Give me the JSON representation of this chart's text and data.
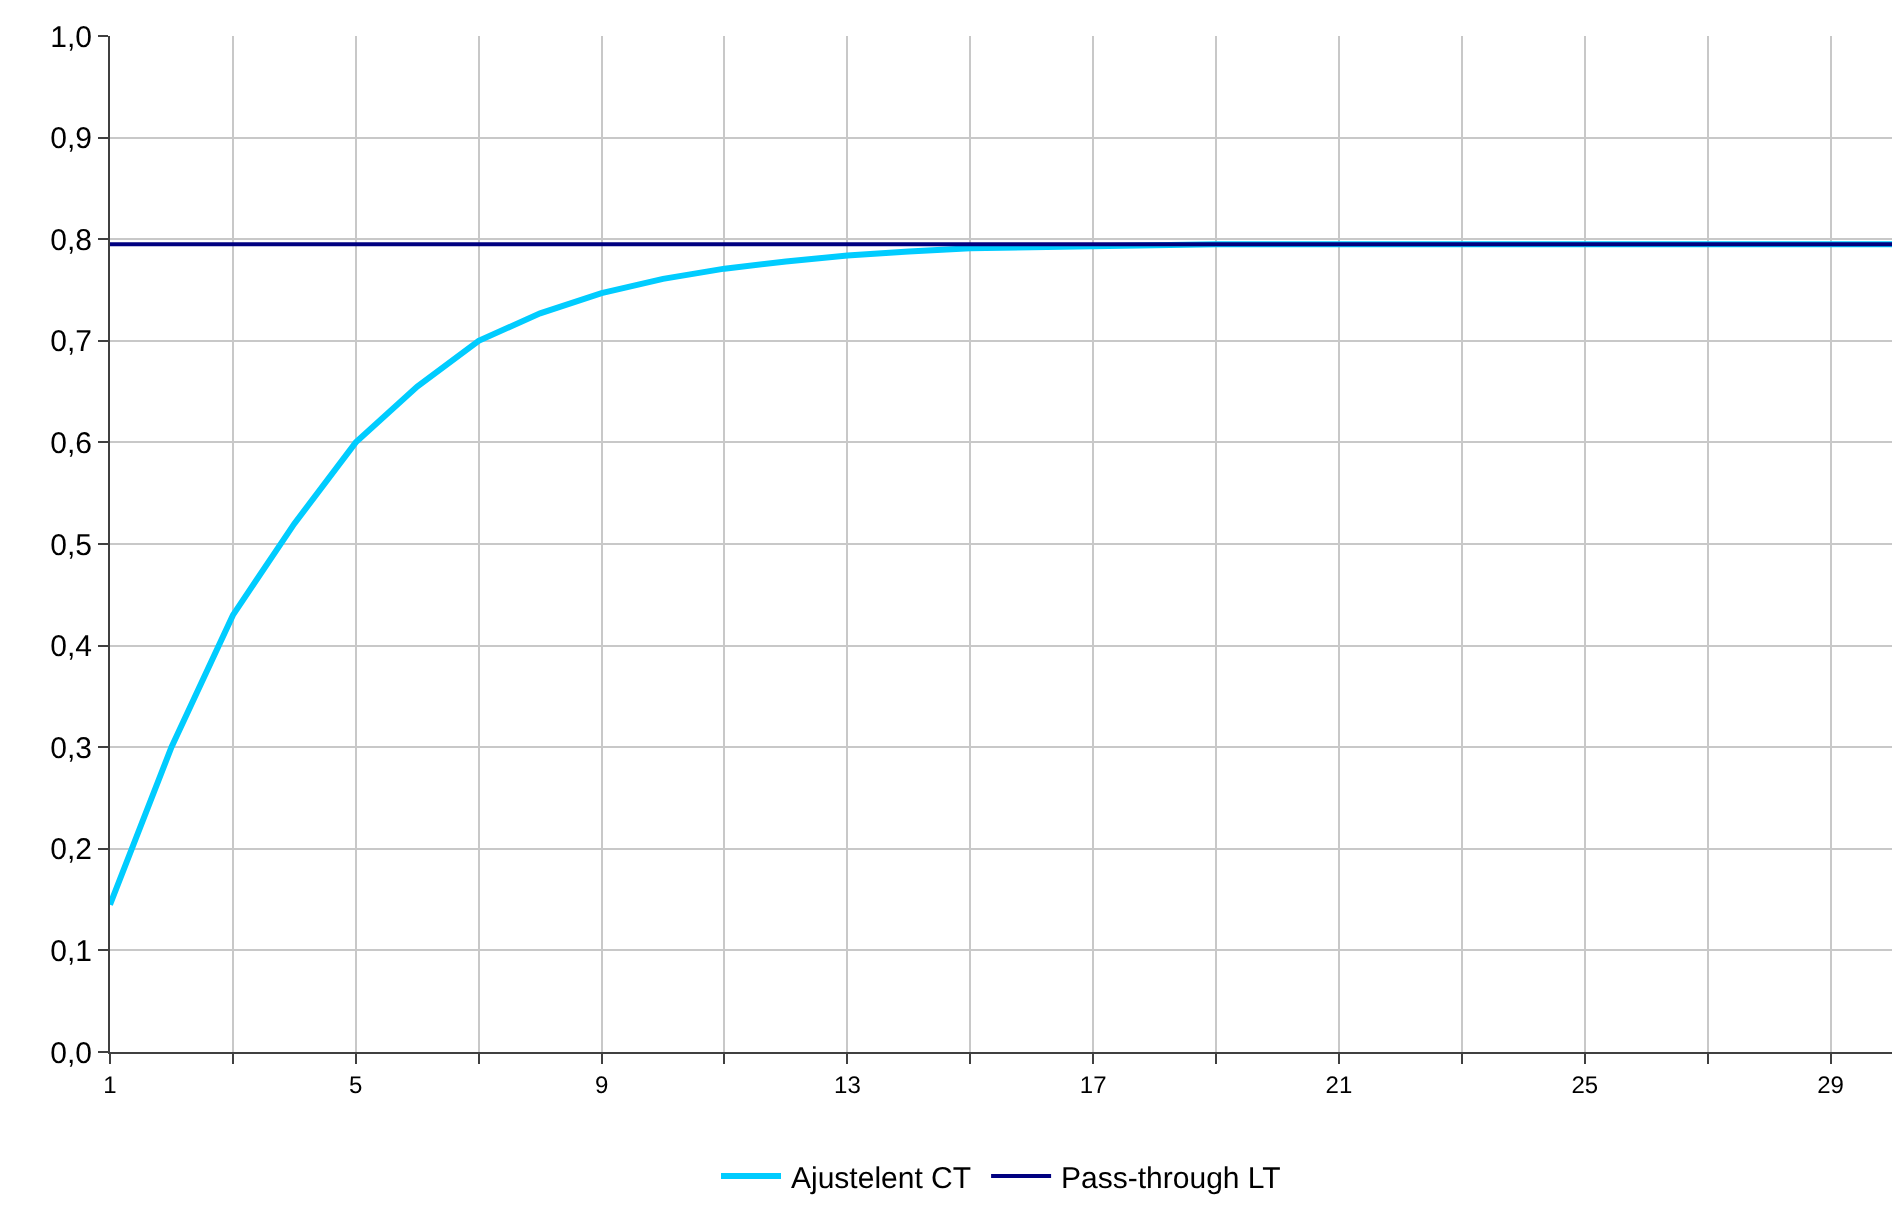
{
  "chart_data": {
    "type": "line",
    "x": [
      1,
      2,
      3,
      4,
      5,
      6,
      7,
      8,
      9,
      10,
      11,
      12,
      13,
      14,
      15,
      16,
      17,
      18,
      19,
      20,
      21,
      22,
      23,
      24,
      25,
      26,
      27,
      28,
      29,
      30
    ],
    "series": [
      {
        "name": "Ajustelent CT",
        "color": "#00ccff",
        "values": [
          0.145,
          0.3,
          0.43,
          0.52,
          0.6,
          0.655,
          0.7,
          0.727,
          0.747,
          0.761,
          0.771,
          0.778,
          0.784,
          0.788,
          0.791,
          0.792,
          0.793,
          0.794,
          0.795,
          0.795,
          0.795,
          0.795,
          0.795,
          0.795,
          0.795,
          0.795,
          0.795,
          0.795,
          0.795,
          0.795
        ]
      },
      {
        "name": "Pass-through LT",
        "color": "#000080",
        "values": [
          0.795,
          0.795,
          0.795,
          0.795,
          0.795,
          0.795,
          0.795,
          0.795,
          0.795,
          0.795,
          0.795,
          0.795,
          0.795,
          0.795,
          0.795,
          0.795,
          0.795,
          0.795,
          0.795,
          0.795,
          0.795,
          0.795,
          0.795,
          0.795,
          0.795,
          0.795,
          0.795,
          0.795,
          0.795,
          0.795
        ]
      }
    ],
    "xlim": [
      1,
      30
    ],
    "xticks": [
      1,
      {
        "value": 3,
        "label": null
      },
      5,
      {
        "value": 7,
        "label": null
      },
      9,
      {
        "value": 11,
        "label": null
      },
      13,
      {
        "value": 15,
        "label": null
      },
      17,
      {
        "value": 19,
        "label": null
      },
      21,
      {
        "value": 23,
        "label": null
      },
      25,
      {
        "value": 27,
        "label": null
      },
      29
    ],
    "ylim": [
      0,
      1
    ],
    "yticks": [
      {
        "value": 0,
        "label": "0,0"
      },
      {
        "value": 0.1,
        "label": "0,1"
      },
      {
        "value": 0.2,
        "label": "0,2"
      },
      {
        "value": 0.3,
        "label": "0,3"
      },
      {
        "value": 0.4,
        "label": "0,4"
      },
      {
        "value": 0.5,
        "label": "0,5"
      },
      {
        "value": 0.6,
        "label": "0,6"
      },
      {
        "value": 0.7,
        "label": "0,7"
      },
      {
        "value": 0.8,
        "label": "0,8"
      },
      {
        "value": 0.9,
        "label": "0,9"
      },
      {
        "value": 1,
        "label": "1,0"
      }
    ],
    "grid": true,
    "legend": "bottom",
    "marker": "none",
    "line_style": "solid"
  }
}
